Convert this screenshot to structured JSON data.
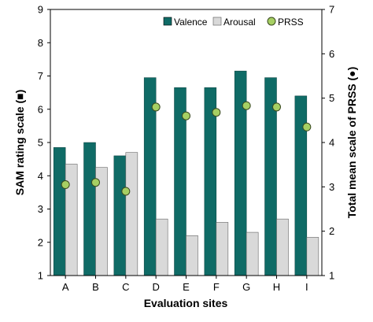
{
  "chart_data": {
    "type": "bar",
    "categories": [
      "A",
      "B",
      "C",
      "D",
      "E",
      "F",
      "G",
      "H",
      "I"
    ],
    "series": [
      {
        "name": "Valence",
        "kind": "bar",
        "axis": "left",
        "color": "#0f6b66",
        "values": [
          4.85,
          5.0,
          4.6,
          6.95,
          6.65,
          6.65,
          7.15,
          6.95,
          6.4
        ]
      },
      {
        "name": "Arousal",
        "kind": "bar",
        "axis": "left",
        "color": "#d9d9d9",
        "values": [
          4.35,
          4.25,
          4.7,
          2.7,
          2.2,
          2.6,
          2.3,
          2.7,
          2.15
        ]
      },
      {
        "name": "PRSS",
        "kind": "scatter",
        "axis": "right",
        "color": "#a6cf63",
        "values": [
          3.05,
          3.1,
          2.9,
          4.8,
          4.6,
          4.68,
          4.83,
          4.8,
          4.35
        ]
      }
    ],
    "xlabel": "Evaluation sites",
    "ylabel": "SAM rating scale (■)",
    "y2label": "Total mean scale of PRSS (●)",
    "ylim": [
      1,
      9
    ],
    "y2lim": [
      1,
      7
    ],
    "yticks": [
      "1",
      "2",
      "3",
      "4",
      "5",
      "6",
      "7",
      "8",
      "9"
    ],
    "y2ticks": [
      "1",
      "2",
      "3",
      "4",
      "5",
      "6",
      "7"
    ],
    "grid": false,
    "legend": "top-right"
  }
}
